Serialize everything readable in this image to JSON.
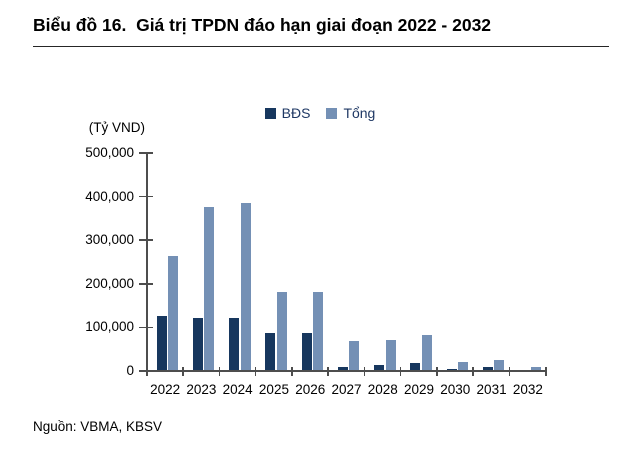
{
  "page": {
    "title": "Biểu đồ 16.  Giá trị TPDN đáo hạn giai đoạn 2022 - 2032",
    "source": "Nguồn: VBMA, KBSV"
  },
  "chart_data": {
    "type": "bar",
    "title": "Giá trị TPDN đáo hạn giai đoạn 2022 - 2032",
    "unit_label": "(Tỷ VND)",
    "categories": [
      "2022",
      "2023",
      "2024",
      "2025",
      "2026",
      "2027",
      "2028",
      "2029",
      "2030",
      "2031",
      "2032"
    ],
    "series": [
      {
        "name": "BĐS",
        "color": "#17375E",
        "values": [
          123000,
          120000,
          120000,
          85000,
          86000,
          8000,
          12000,
          17000,
          2000,
          7000,
          1000
        ]
      },
      {
        "name": "Tổng",
        "color": "#7490B5",
        "values": [
          262000,
          375000,
          382000,
          178000,
          178000,
          66000,
          69000,
          80000,
          19000,
          22000,
          6000
        ]
      }
    ],
    "ylim": [
      0,
      500000
    ],
    "ytick_step": 100000,
    "grid": false,
    "legend_position": "top-center",
    "axis_color": "#4d4d4d",
    "xlabel": "",
    "ylabel": "(Tỷ VND)"
  }
}
